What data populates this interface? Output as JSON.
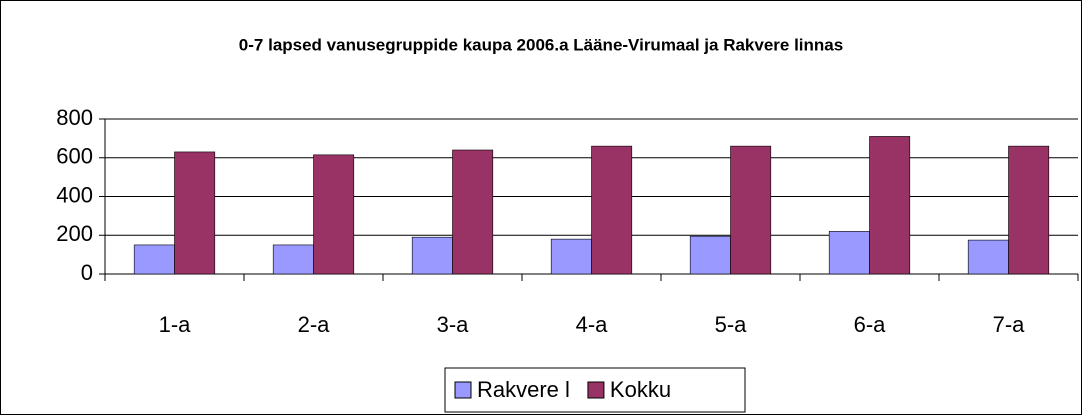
{
  "chart_data": {
    "type": "bar",
    "title": "0-7 lapsed vanusegruppide kaupa 2006.a Lääne-Virumaal ja Rakvere linnas",
    "categories": [
      "1-a",
      "2-a",
      "3-a",
      "4-a",
      "5-a",
      "6-a",
      "7-a"
    ],
    "series": [
      {
        "name": "Rakvere l",
        "color": "#9999ff",
        "values": [
          150,
          150,
          190,
          180,
          195,
          220,
          175
        ]
      },
      {
        "name": "Kokku",
        "color": "#993366",
        "values": [
          630,
          615,
          640,
          660,
          660,
          710,
          660
        ]
      }
    ],
    "ylim": [
      0,
      800
    ],
    "yticks": [
      0,
      200,
      400,
      600,
      800
    ],
    "grid": true,
    "legend": "bottom"
  }
}
